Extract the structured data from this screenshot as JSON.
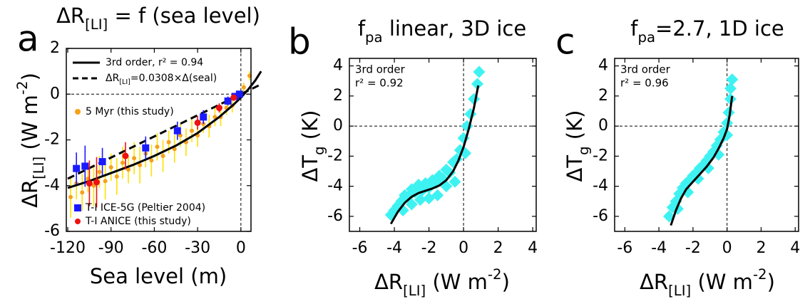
{
  "chart_data": [
    {
      "type": "scatter",
      "label": "a",
      "title": [
        "ΔR",
        "[LI]",
        " = f (sea level)"
      ],
      "xlabel": "Sea level (m)",
      "ylabel": [
        "ΔR",
        "[LI]",
        " (W m",
        "-2",
        ")"
      ],
      "xlim": [
        -121,
        7
      ],
      "ylim": [
        -6,
        2
      ],
      "xticks": [
        -120,
        -90,
        -60,
        -30,
        0
      ],
      "yticks": [
        -6,
        -4,
        -2,
        0,
        2
      ],
      "zero_lines": true,
      "legend": true,
      "series": [
        {
          "name": "5 Myr (this study)",
          "color": "#f7a11a",
          "error_color": "#ffe000",
          "marker": "circle",
          "x": [
            -118,
            -114,
            -110,
            -106,
            -102,
            -98,
            -94,
            -90,
            -86,
            -82,
            -78,
            -74,
            -70,
            -66,
            -62,
            -58,
            -54,
            -50,
            -46,
            -42,
            -38,
            -34,
            -30,
            -26,
            -22,
            -18,
            -14,
            -10,
            -6,
            -2,
            2,
            6
          ],
          "values": [
            -4.5,
            -3.9,
            -4.3,
            -3.7,
            -4.0,
            -3.4,
            -3.8,
            -3.2,
            -3.6,
            -3.0,
            -3.3,
            -2.8,
            -3.1,
            -2.6,
            -2.9,
            -2.3,
            -2.7,
            -2.1,
            -2.4,
            -1.8,
            -2.1,
            -1.6,
            -1.8,
            -1.3,
            -1.4,
            -1.0,
            -1.0,
            -0.6,
            -0.5,
            -0.1,
            0.3,
            0.8
          ],
          "errors": [
            0.9,
            0.7,
            0.8,
            0.6,
            0.9,
            0.7,
            0.8,
            0.6,
            0.8,
            0.7,
            0.6,
            0.7,
            0.8,
            0.6,
            0.7,
            0.6,
            0.7,
            0.5,
            0.6,
            0.5,
            0.6,
            0.5,
            0.5,
            0.4,
            0.5,
            0.4,
            0.4,
            0.3,
            0.3,
            0.2,
            0.2,
            0.2
          ]
        },
        {
          "name": "3rd order, r² = 0.94",
          "color": "#000000",
          "marker": "line",
          "x": [
            -120,
            -105,
            -90,
            -75,
            -60,
            -45,
            -30,
            -15,
            -5,
            0,
            5,
            10,
            14
          ],
          "values": [
            -4.1,
            -3.8,
            -3.45,
            -3.1,
            -2.7,
            -2.25,
            -1.7,
            -1.0,
            -0.45,
            -0.15,
            0.2,
            0.6,
            1.0
          ]
        },
        {
          "name": [
            "ΔR",
            "[LI]",
            "=0.0308×Δ(seal)"
          ],
          "color": "#000000",
          "marker": "line",
          "dash": true,
          "x": [
            -120,
            14
          ],
          "values": [
            -3.696,
            0.4312
          ]
        },
        {
          "name": "T-I ICE-5G (Peltier 2004)",
          "color": "#1a1aff",
          "error_color": "#1a1aff",
          "marker": "square",
          "x": [
            -114,
            -108,
            -96,
            -66,
            -44,
            -26,
            -9,
            -4,
            -1
          ],
          "values": [
            -3.25,
            -3.15,
            -2.95,
            -2.35,
            -1.6,
            -1.0,
            -0.3,
            -0.1,
            0
          ],
          "errors": [
            0.7,
            0.9,
            0.6,
            0.5,
            0.4,
            0.3,
            0.2,
            0.15,
            0.1
          ]
        },
        {
          "name": "T-I ANICE (this study)",
          "color": "#ee1111",
          "error_color": "#ee1111",
          "marker": "circle",
          "x": [
            -105,
            -100,
            -80,
            -30,
            -15,
            -5
          ],
          "values": [
            -3.9,
            -3.85,
            -2.7,
            -1.25,
            -0.6,
            -0.15
          ],
          "errors": [
            1.0,
            1.1,
            0.6,
            0.3,
            0.2,
            0.1
          ]
        }
      ]
    },
    {
      "type": "scatter",
      "label": "b",
      "title": [
        "f",
        "pa",
        " linear, 3D ice"
      ],
      "xlabel": [
        "ΔR",
        "[LI]",
        " (W m",
        "-2",
        ")"
      ],
      "ylabel": [
        "ΔT",
        "g",
        " (K)"
      ],
      "xlim": [
        -6.6,
        4.2
      ],
      "ylim": [
        -7,
        4.5
      ],
      "xticks": [
        -6,
        -4,
        -2,
        0,
        2,
        4
      ],
      "yticks": [
        -6,
        -4,
        -2,
        0,
        2,
        4
      ],
      "zero_lines": true,
      "annotation": [
        "3rd order",
        "r² = 0.92"
      ],
      "series": [
        {
          "color": "#3ff2f2",
          "marker": "diamond",
          "x": [
            -4.2,
            -4.0,
            -3.8,
            -3.6,
            -3.4,
            -3.2,
            -3.0,
            -2.8,
            -2.6,
            -2.4,
            -2.2,
            -2.0,
            -1.8,
            -1.6,
            -1.4,
            -1.2,
            -1.0,
            -0.8,
            -0.6,
            -0.4,
            -0.2,
            0,
            0.2,
            0.4,
            0.6,
            0.8,
            0.9,
            -3.5,
            -2.5,
            -1.5,
            -0.5,
            0.1,
            -3.0,
            -2.0,
            -1.0
          ],
          "values": [
            -5.9,
            -5.6,
            -5.3,
            -5.0,
            -4.6,
            -4.7,
            -4.2,
            -4.4,
            -3.9,
            -4.3,
            -3.8,
            -4.1,
            -3.6,
            -3.8,
            -3.3,
            -3.5,
            -2.9,
            -3.1,
            -2.4,
            -2.2,
            -1.6,
            -0.8,
            0.0,
            0.8,
            1.8,
            2.8,
            3.6,
            -5.6,
            -4.9,
            -4.6,
            -3.7,
            -1.8,
            -5.2,
            -4.8,
            -4.0
          ]
        },
        {
          "color": "#000000",
          "marker": "line",
          "x": [
            -4.2,
            -3.8,
            -3.4,
            -3.0,
            -2.6,
            -2.2,
            -1.8,
            -1.4,
            -1.0,
            -0.6,
            -0.3,
            0,
            0.3,
            0.6,
            0.85
          ],
          "values": [
            -6.5,
            -5.7,
            -5.1,
            -4.7,
            -4.45,
            -4.3,
            -4.15,
            -3.95,
            -3.6,
            -3.0,
            -2.3,
            -1.4,
            -0.2,
            1.2,
            2.7
          ]
        }
      ]
    },
    {
      "type": "scatter",
      "label": "c",
      "title": [
        "f",
        "pa",
        "=2.7, 1D ice"
      ],
      "xlabel": [
        "ΔR",
        "[LI]",
        " (W m",
        "-2",
        ")"
      ],
      "ylabel": [
        "ΔT",
        "g",
        " (K)"
      ],
      "xlim": [
        -6.6,
        4.2
      ],
      "ylim": [
        -7,
        4.5
      ],
      "xticks": [
        -6,
        -4,
        -2,
        0,
        2,
        4
      ],
      "yticks": [
        -6,
        -4,
        -2,
        0,
        2,
        4
      ],
      "zero_lines": true,
      "annotation": [
        "3rd order",
        "r² = 0.96"
      ],
      "series": [
        {
          "color": "#3ff2f2",
          "marker": "diamond",
          "x": [
            -3.4,
            -3.2,
            -3.0,
            -2.8,
            -2.6,
            -2.4,
            -2.2,
            -2.0,
            -1.8,
            -1.6,
            -1.4,
            -1.2,
            -1.0,
            -0.8,
            -0.6,
            -0.4,
            -0.2,
            0,
            0.1,
            0.2,
            0.3,
            -2.9,
            -2.3,
            -1.7,
            -1.1,
            -0.5,
            0.0,
            0.2
          ],
          "values": [
            -6.0,
            -5.4,
            -5.0,
            -4.5,
            -4.1,
            -3.8,
            -3.6,
            -3.3,
            -3.1,
            -2.8,
            -2.6,
            -2.3,
            -2.0,
            -1.7,
            -1.3,
            -0.9,
            -0.4,
            0.2,
            0.9,
            1.8,
            3.1,
            -5.5,
            -4.4,
            -3.5,
            -2.8,
            -1.9,
            -0.6,
            2.5
          ]
        },
        {
          "color": "#000000",
          "marker": "line",
          "x": [
            -3.3,
            -3.0,
            -2.7,
            -2.4,
            -2.0,
            -1.6,
            -1.2,
            -0.8,
            -0.5,
            -0.2,
            0,
            0.15,
            0.3
          ],
          "values": [
            -6.6,
            -5.6,
            -4.8,
            -4.2,
            -3.7,
            -3.2,
            -2.7,
            -2.1,
            -1.5,
            -0.8,
            -0.2,
            0.7,
            2.0
          ]
        }
      ]
    }
  ]
}
